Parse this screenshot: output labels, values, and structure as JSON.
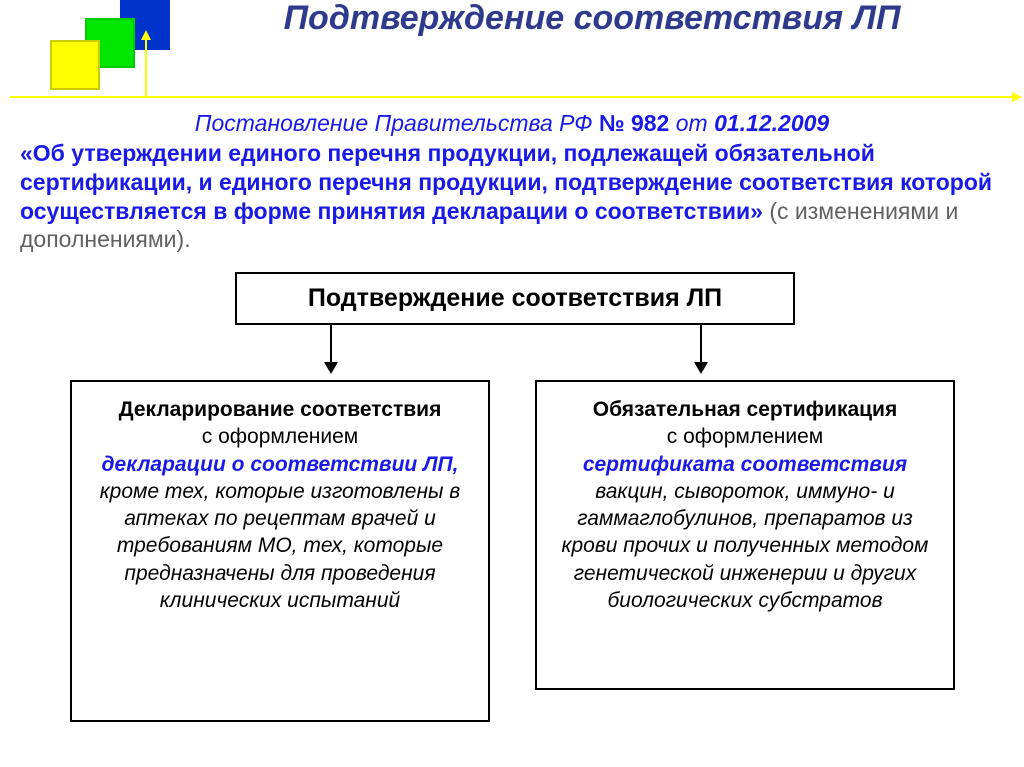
{
  "colors": {
    "title_color": "#2e3b8c",
    "accent_blue": "#1a1ae6",
    "muted_gray": "#606060",
    "axis_yellow": "#ffff00",
    "logo_blue": "#0033cc",
    "logo_green": "#00e600",
    "logo_yellow": "#ffff00",
    "background": "#ffffff",
    "box_border": "#000000"
  },
  "typography": {
    "title_fontsize": 34,
    "body_fontsize": 23,
    "box_title_fontsize": 25,
    "branch_fontsize": 21
  },
  "title": "Подтверждение соответствия ЛП",
  "decree": {
    "prefix": "Постановление Правительства РФ ",
    "num_label": "№ 982",
    "from": " от ",
    "date": "01.12.2009",
    "body": "«Об утверждении единого перечня продукции, подлежащей обязательной сертификации, и единого перечня продукции, подтверждение соответствия которой осуществляется в форме принятия декларации о соответствии» ",
    "note": "(с изменениями и дополнениями)."
  },
  "diagram": {
    "type": "flowchart",
    "root": {
      "label": "Подтверждение соответствия ЛП"
    },
    "left": {
      "title": "Декларирование соответствия",
      "sub": "с оформлением",
      "em": "декларации о соответствии ЛП,",
      "rest": " кроме тех, которые изготовлены в аптеках по рецептам врачей и требованиям МО, тех, которые предназначены для проведения клинических испытаний"
    },
    "right": {
      "title": "Обязательная сертификация",
      "sub": "с оформлением",
      "em": "сертификата соответствия",
      "rest": "вакцин, сывороток, иммуно- и гаммаглобулинов, препаратов из крови прочих и полученных методом генетической инженерии и других биологических субстратов"
    }
  }
}
